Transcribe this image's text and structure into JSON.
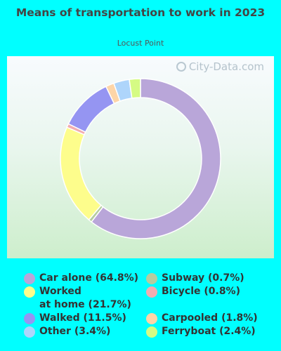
{
  "chart_data": {
    "type": "pie",
    "title": "Means of transportation to work in 2023",
    "subtitle": "Locust Point",
    "watermark": "City-Data.com",
    "slices": [
      {
        "label": "Car alone (64.8%)",
        "value": 64.8,
        "color": "#b9a6d9"
      },
      {
        "label": "Subway (0.7%)",
        "value": 0.7,
        "color": "#b5cca0"
      },
      {
        "label": "Worked\nat home (21.7%)",
        "value": 21.7,
        "color": "#fdfd8c"
      },
      {
        "label": "Bicycle (0.8%)",
        "value": 0.8,
        "color": "#f2adb0"
      },
      {
        "label": "Walked (11.5%)",
        "value": 11.5,
        "color": "#9595f2"
      },
      {
        "label": "Carpooled (1.8%)",
        "value": 1.8,
        "color": "#fdd5a8"
      },
      {
        "label": "Other (3.4%)",
        "value": 3.4,
        "color": "#aed5fb"
      },
      {
        "label": "Ferryboat (2.4%)",
        "value": 2.4,
        "color": "#d5fb84"
      }
    ],
    "draw_order": [
      0,
      1,
      2,
      3,
      4,
      5,
      6,
      7
    ],
    "legend_order": [
      0,
      1,
      2,
      3,
      4,
      5,
      6,
      7
    ]
  }
}
